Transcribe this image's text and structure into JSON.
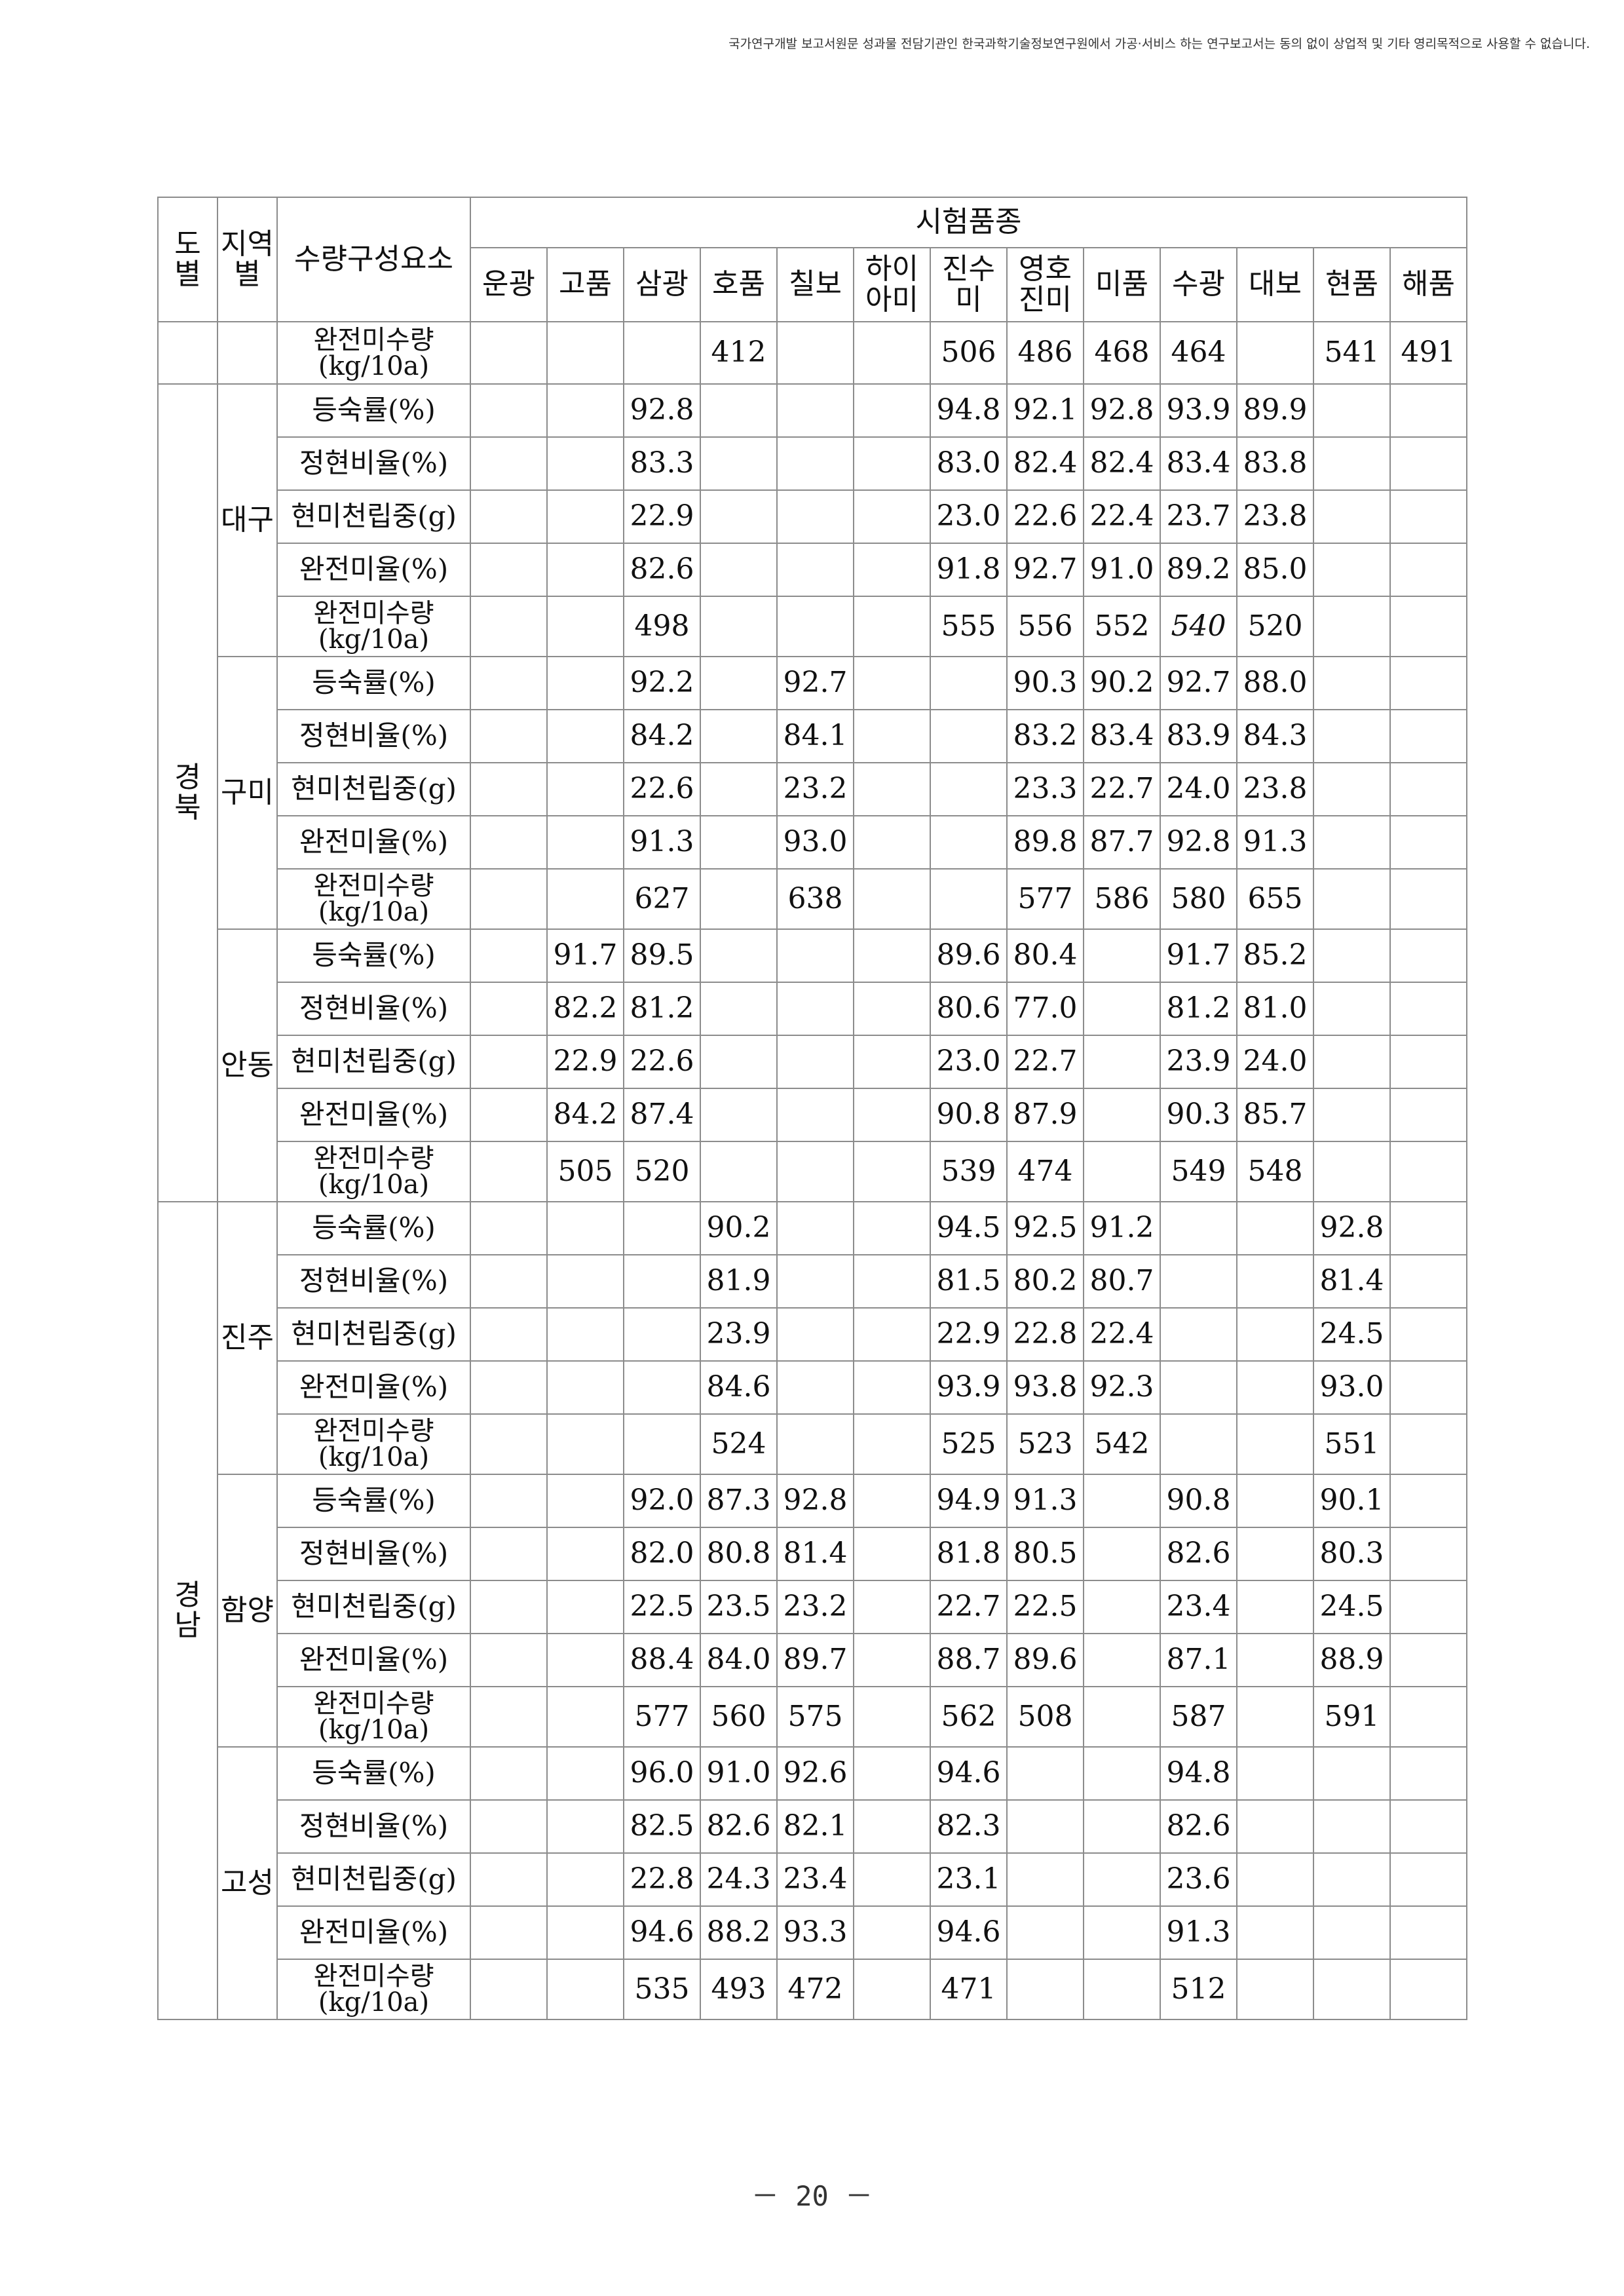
{
  "notice": "국가연구개발 보고서원문 성과물 전담기관인 한국과학기술정보연구원에서 가공·서비스 하는 연구보고서는 동의 없이 상업적 및 기타 영리목적으로 사용할 수 없습니다.",
  "table": {
    "header": {
      "do_top": "도",
      "do_bottom": "별",
      "region_top": "지역",
      "region_bottom": "별",
      "component": "수량구성요소",
      "group": "시험품종",
      "varieties": [
        [
          "운광"
        ],
        [
          "고품"
        ],
        [
          "삼광"
        ],
        [
          "호품"
        ],
        [
          "칠보"
        ],
        [
          "하이",
          "아미"
        ],
        [
          "진수",
          "미"
        ],
        [
          "영호",
          "진미"
        ],
        [
          "미품"
        ],
        [
          "수광"
        ],
        [
          "대보"
        ],
        [
          "현품"
        ],
        [
          "해품"
        ]
      ]
    },
    "carry_row": {
      "item_top": "완전미수량",
      "item_bottom": "(kg/10a)",
      "values": [
        "",
        "",
        "",
        "412",
        "",
        "",
        "506",
        "486",
        "468",
        "464",
        "",
        "541",
        "491"
      ]
    },
    "provinces": [
      {
        "name": [
          "경",
          "북"
        ],
        "regions": [
          {
            "name": "대구",
            "rows": [
              {
                "item": "등숙률(%)",
                "values": [
                  "",
                  "",
                  "92.8",
                  "",
                  "",
                  "",
                  "94.8",
                  "92.1",
                  "92.8",
                  "93.9",
                  "89.9",
                  "",
                  ""
                ]
              },
              {
                "item": "정현비율(%)",
                "values": [
                  "",
                  "",
                  "83.3",
                  "",
                  "",
                  "",
                  "83.0",
                  "82.4",
                  "82.4",
                  "83.4",
                  "83.8",
                  "",
                  ""
                ]
              },
              {
                "item": "현미천립중(g)",
                "values": [
                  "",
                  "",
                  "22.9",
                  "",
                  "",
                  "",
                  "23.0",
                  "22.6",
                  "22.4",
                  "23.7",
                  "23.8",
                  "",
                  ""
                ]
              },
              {
                "item": "완전미율(%)",
                "values": [
                  "",
                  "",
                  "82.6",
                  "",
                  "",
                  "",
                  "91.8",
                  "92.7",
                  "91.0",
                  "89.2",
                  "85.0",
                  "",
                  ""
                ]
              },
              {
                "item": "완전미수량",
                "item2": "(kg/10a)",
                "values": [
                  "",
                  "",
                  "498",
                  "",
                  "",
                  "",
                  "555",
                  "556",
                  "552",
                  "540",
                  "520",
                  "",
                  ""
                ],
                "italic": [
                  9
                ]
              }
            ]
          },
          {
            "name": "구미",
            "rows": [
              {
                "item": "등숙률(%)",
                "values": [
                  "",
                  "",
                  "92.2",
                  "",
                  "92.7",
                  "",
                  "",
                  "90.3",
                  "90.2",
                  "92.7",
                  "88.0",
                  "",
                  ""
                ]
              },
              {
                "item": "정현비율(%)",
                "values": [
                  "",
                  "",
                  "84.2",
                  "",
                  "84.1",
                  "",
                  "",
                  "83.2",
                  "83.4",
                  "83.9",
                  "84.3",
                  "",
                  ""
                ]
              },
              {
                "item": "현미천립중(g)",
                "values": [
                  "",
                  "",
                  "22.6",
                  "",
                  "23.2",
                  "",
                  "",
                  "23.3",
                  "22.7",
                  "24.0",
                  "23.8",
                  "",
                  ""
                ]
              },
              {
                "item": "완전미율(%)",
                "values": [
                  "",
                  "",
                  "91.3",
                  "",
                  "93.0",
                  "",
                  "",
                  "89.8",
                  "87.7",
                  "92.8",
                  "91.3",
                  "",
                  ""
                ]
              },
              {
                "item": "완전미수량",
                "item2": "(kg/10a)",
                "values": [
                  "",
                  "",
                  "627",
                  "",
                  "638",
                  "",
                  "",
                  "577",
                  "586",
                  "580",
                  "655",
                  "",
                  ""
                ]
              }
            ]
          },
          {
            "name": "안동",
            "rows": [
              {
                "item": "등숙률(%)",
                "values": [
                  "",
                  "91.7",
                  "89.5",
                  "",
                  "",
                  "",
                  "89.6",
                  "80.4",
                  "",
                  "91.7",
                  "85.2",
                  "",
                  ""
                ]
              },
              {
                "item": "정현비율(%)",
                "values": [
                  "",
                  "82.2",
                  "81.2",
                  "",
                  "",
                  "",
                  "80.6",
                  "77.0",
                  "",
                  "81.2",
                  "81.0",
                  "",
                  ""
                ]
              },
              {
                "item": "현미천립중(g)",
                "values": [
                  "",
                  "22.9",
                  "22.6",
                  "",
                  "",
                  "",
                  "23.0",
                  "22.7",
                  "",
                  "23.9",
                  "24.0",
                  "",
                  ""
                ]
              },
              {
                "item": "완전미율(%)",
                "values": [
                  "",
                  "84.2",
                  "87.4",
                  "",
                  "",
                  "",
                  "90.8",
                  "87.9",
                  "",
                  "90.3",
                  "85.7",
                  "",
                  ""
                ]
              },
              {
                "item": "완전미수량",
                "item2": "(kg/10a)",
                "values": [
                  "",
                  "505",
                  "520",
                  "",
                  "",
                  "",
                  "539",
                  "474",
                  "",
                  "549",
                  "548",
                  "",
                  ""
                ]
              }
            ]
          }
        ]
      },
      {
        "name": [
          "경",
          "남"
        ],
        "regions": [
          {
            "name": "진주",
            "rows": [
              {
                "item": "등숙률(%)",
                "values": [
                  "",
                  "",
                  "",
                  "90.2",
                  "",
                  "",
                  "94.5",
                  "92.5",
                  "91.2",
                  "",
                  "",
                  "92.8",
                  ""
                ]
              },
              {
                "item": "정현비율(%)",
                "values": [
                  "",
                  "",
                  "",
                  "81.9",
                  "",
                  "",
                  "81.5",
                  "80.2",
                  "80.7",
                  "",
                  "",
                  "81.4",
                  ""
                ]
              },
              {
                "item": "현미천립중(g)",
                "values": [
                  "",
                  "",
                  "",
                  "23.9",
                  "",
                  "",
                  "22.9",
                  "22.8",
                  "22.4",
                  "",
                  "",
                  "24.5",
                  ""
                ]
              },
              {
                "item": "완전미율(%)",
                "values": [
                  "",
                  "",
                  "",
                  "84.6",
                  "",
                  "",
                  "93.9",
                  "93.8",
                  "92.3",
                  "",
                  "",
                  "93.0",
                  ""
                ]
              },
              {
                "item": "완전미수량",
                "item2": "(kg/10a)",
                "values": [
                  "",
                  "",
                  "",
                  "524",
                  "",
                  "",
                  "525",
                  "523",
                  "542",
                  "",
                  "",
                  "551",
                  ""
                ]
              }
            ]
          },
          {
            "name": "함양",
            "rows": [
              {
                "item": "등숙률(%)",
                "values": [
                  "",
                  "",
                  "92.0",
                  "87.3",
                  "92.8",
                  "",
                  "94.9",
                  "91.3",
                  "",
                  "90.8",
                  "",
                  "90.1",
                  ""
                ]
              },
              {
                "item": "정현비율(%)",
                "values": [
                  "",
                  "",
                  "82.0",
                  "80.8",
                  "81.4",
                  "",
                  "81.8",
                  "80.5",
                  "",
                  "82.6",
                  "",
                  "80.3",
                  ""
                ]
              },
              {
                "item": "현미천립중(g)",
                "values": [
                  "",
                  "",
                  "22.5",
                  "23.5",
                  "23.2",
                  "",
                  "22.7",
                  "22.5",
                  "",
                  "23.4",
                  "",
                  "24.5",
                  ""
                ]
              },
              {
                "item": "완전미율(%)",
                "values": [
                  "",
                  "",
                  "88.4",
                  "84.0",
                  "89.7",
                  "",
                  "88.7",
                  "89.6",
                  "",
                  "87.1",
                  "",
                  "88.9",
                  ""
                ]
              },
              {
                "item": "완전미수량",
                "item2": "(kg/10a)",
                "values": [
                  "",
                  "",
                  "577",
                  "560",
                  "575",
                  "",
                  "562",
                  "508",
                  "",
                  "587",
                  "",
                  "591",
                  ""
                ]
              }
            ]
          },
          {
            "name": "고성",
            "rows": [
              {
                "item": "등숙률(%)",
                "values": [
                  "",
                  "",
                  "96.0",
                  "91.0",
                  "92.6",
                  "",
                  "94.6",
                  "",
                  "",
                  "94.8",
                  "",
                  "",
                  ""
                ]
              },
              {
                "item": "정현비율(%)",
                "values": [
                  "",
                  "",
                  "82.5",
                  "82.6",
                  "82.1",
                  "",
                  "82.3",
                  "",
                  "",
                  "82.6",
                  "",
                  "",
                  ""
                ]
              },
              {
                "item": "현미천립중(g)",
                "values": [
                  "",
                  "",
                  "22.8",
                  "24.3",
                  "23.4",
                  "",
                  "23.1",
                  "",
                  "",
                  "23.6",
                  "",
                  "",
                  ""
                ]
              },
              {
                "item": "완전미율(%)",
                "values": [
                  "",
                  "",
                  "94.6",
                  "88.2",
                  "93.3",
                  "",
                  "94.6",
                  "",
                  "",
                  "91.3",
                  "",
                  "",
                  ""
                ]
              },
              {
                "item": "완전미수량",
                "item2": "(kg/10a)",
                "values": [
                  "",
                  "",
                  "535",
                  "493",
                  "472",
                  "",
                  "471",
                  "",
                  "",
                  "512",
                  "",
                  "",
                  ""
                ]
              }
            ]
          }
        ]
      }
    ]
  },
  "page_number": "－ 20 －"
}
